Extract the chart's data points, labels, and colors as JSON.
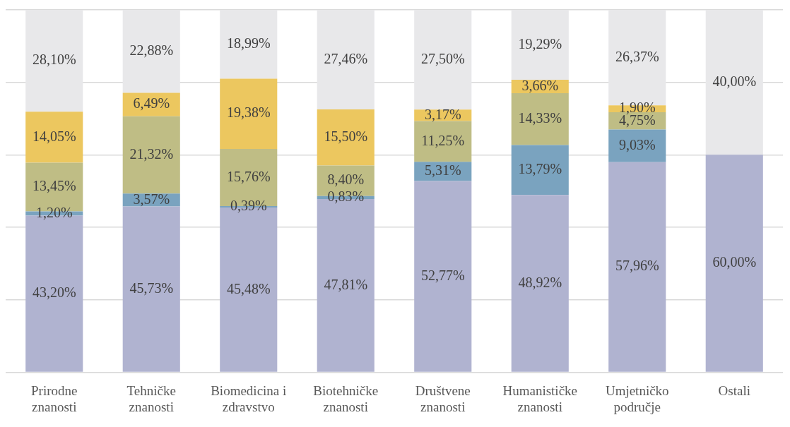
{
  "chart_data": {
    "type": "bar",
    "stacked": true,
    "categories": [
      "Prirodne znanosti",
      "Tehničke znanosti",
      "Biomedicina i zdravstvo",
      "Biotehničke znanosti",
      "Društvene znanosti",
      "Humanističke znanosti",
      "Umjetničko područje",
      "Ostali"
    ],
    "ylim": [
      0,
      100
    ],
    "yticks": [
      {
        "value": 0,
        "label": null
      },
      {
        "value": 20,
        "label": null
      },
      {
        "value": 40,
        "label": null
      },
      {
        "value": 60,
        "label": null
      },
      {
        "value": 80,
        "label": null
      },
      {
        "value": 100,
        "label": null
      }
    ],
    "grid": "y",
    "tick_labels": "x",
    "legend": false,
    "series": [
      {
        "color": "#b0b3d0",
        "values": [
          43.2,
          45.73,
          45.48,
          47.81,
          52.77,
          48.92,
          57.96,
          60.0
        ],
        "value_labels": [
          "43,20%",
          "45,73%",
          "45,48%",
          "47,81%",
          "52,77%",
          "48,92%",
          "57,96%",
          "60,00%"
        ]
      },
      {
        "color": "#7aa3bf",
        "values": [
          1.2,
          3.57,
          0.39,
          0.83,
          5.31,
          13.79,
          9.03,
          null
        ],
        "value_labels": [
          "1,20%",
          "3,57%",
          "0,39%",
          "0,83%",
          "5,31%",
          "13,79%",
          "9,03%",
          null
        ]
      },
      {
        "color": "#bfbd85",
        "values": [
          13.45,
          21.32,
          15.76,
          8.4,
          11.25,
          14.33,
          4.75,
          null
        ],
        "value_labels": [
          "13,45%",
          "21,32%",
          "15,76%",
          "8,40%",
          "11,25%",
          "14,33%",
          "4,75%",
          null
        ]
      },
      {
        "color": "#ecc75f",
        "values": [
          14.05,
          6.49,
          19.38,
          15.5,
          3.17,
          3.66,
          1.9,
          null
        ],
        "value_labels": [
          "14,05%",
          "6,49%",
          "19,38%",
          "15,50%",
          "3,17%",
          "3,66%",
          "1,90%",
          null
        ]
      },
      {
        "color": "#e8e8ea",
        "values": [
          28.1,
          22.88,
          18.99,
          27.46,
          27.5,
          19.29,
          26.37,
          40.0
        ],
        "value_labels": [
          "28,10%",
          "22,88%",
          "18,99%",
          "27,46%",
          "27,50%",
          "19,29%",
          "26,37%",
          "40,00%"
        ]
      }
    ]
  }
}
